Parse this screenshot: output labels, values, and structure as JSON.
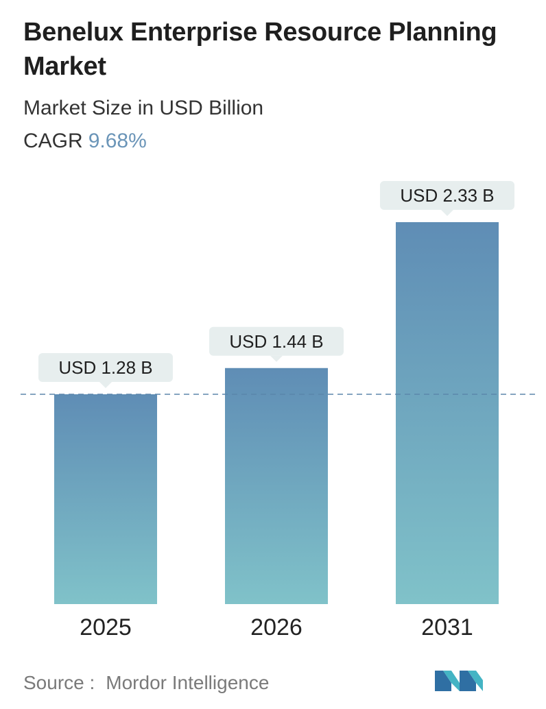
{
  "header": {
    "title": "Benelux Enterprise Resource Planning Market",
    "subtitle": "Market Size in USD Billion",
    "cagr_label": "CAGR",
    "cagr_value": "9.68%"
  },
  "chart_data": {
    "type": "bar",
    "categories": [
      "2025",
      "2026",
      "2031"
    ],
    "values": [
      1.28,
      1.44,
      2.33
    ],
    "value_labels": [
      "USD 1.28 B",
      "USD 1.44 B",
      "USD 2.33 B"
    ],
    "title": "Benelux Enterprise Resource Planning Market",
    "subtitle": "Market Size in USD Billion",
    "unit": "USD Billion",
    "ylim": [
      0,
      2.33
    ],
    "reference_line_value": 1.28,
    "grid": false,
    "legend": "none",
    "colors": {
      "bar_top": "#5f8db5",
      "bar_bottom": "#80c2c9",
      "label_bg": "#e7eeee",
      "dashed_line": "#5b86ab",
      "axis_text": "#222222"
    }
  },
  "footer": {
    "source_label": "Source :",
    "source_value": "Mordor Intelligence",
    "logo_icon": "mordor-intelligence-logo-icon"
  }
}
